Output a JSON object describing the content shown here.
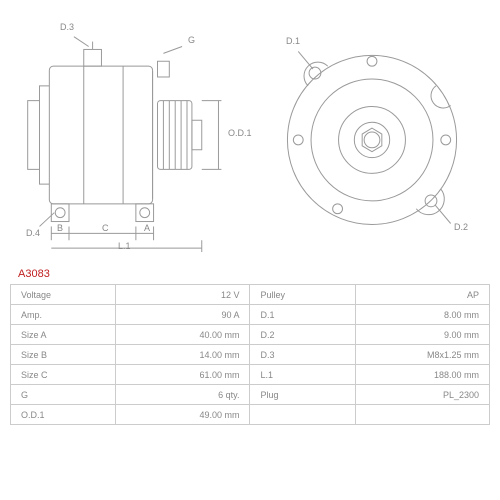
{
  "part_number": "A3083",
  "callouts_side": {
    "d3": "D.3",
    "d4": "D.4",
    "g": "G",
    "od1": "O.D.1",
    "b": "B",
    "c": "C",
    "l1": "L.1",
    "a": "A"
  },
  "callouts_front": {
    "d1": "D.1",
    "d2": "D.2"
  },
  "specs": {
    "rows": [
      {
        "l1": "Voltage",
        "v1": "12 V",
        "l2": "Pulley",
        "v2": "AP"
      },
      {
        "l1": "Amp.",
        "v1": "90 A",
        "l2": "D.1",
        "v2": "8.00 mm"
      },
      {
        "l1": "Size A",
        "v1": "40.00 mm",
        "l2": "D.2",
        "v2": "9.00 mm"
      },
      {
        "l1": "Size B",
        "v1": "14.00 mm",
        "l2": "D.3",
        "v2": "M8x1.25 mm"
      },
      {
        "l1": "Size C",
        "v1": "61.00 mm",
        "l2": "L.1",
        "v2": "188.00 mm"
      },
      {
        "l1": "G",
        "v1": "6 qty.",
        "l2": "Plug",
        "v2": "PL_2300"
      },
      {
        "l1": "O.D.1",
        "v1": "49.00 mm",
        "l2": "",
        "v2": ""
      }
    ]
  },
  "colors": {
    "line": "#999999",
    "text": "#888888",
    "border": "#cccccc",
    "accent": "#c02020",
    "bg": "#ffffff"
  }
}
